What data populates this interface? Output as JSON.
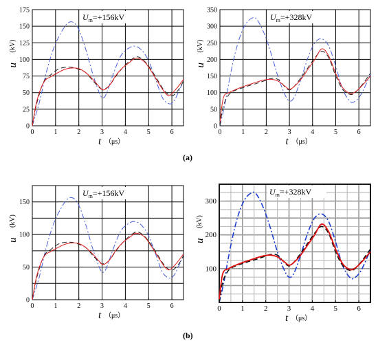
{
  "captions": [
    "(a)",
    "(b)"
  ],
  "chart_data": [
    {
      "type": "line",
      "annotation": "U_m=+156kV",
      "annotation_parts": {
        "symbol": "U",
        "sub": "m",
        "rest": "=+156kV"
      },
      "xlabel": "t",
      "xunit": "（μs）",
      "ylabel": "u",
      "yunit": "(kV)",
      "xlim": [
        0,
        6.5
      ],
      "ylim": [
        0,
        175
      ],
      "xticks": [
        0,
        1,
        2,
        3,
        4,
        5,
        6
      ],
      "yticks": [
        0,
        25,
        50,
        75,
        100,
        125,
        150,
        175
      ],
      "grid": true,
      "series": [
        {
          "style": "dash-dot",
          "color": "#4a5fd6",
          "x": [
            0,
            0.3,
            0.6,
            0.9,
            1.2,
            1.5,
            1.75,
            2.0,
            2.3,
            2.6,
            2.9,
            3.05,
            3.2,
            3.5,
            3.8,
            4.1,
            4.4,
            4.7,
            5.0,
            5.3,
            5.6,
            5.9,
            6.1,
            6.3,
            6.5
          ],
          "y": [
            0,
            35,
            80,
            115,
            138,
            154,
            156,
            145,
            115,
            78,
            48,
            42,
            50,
            80,
            105,
            116,
            120,
            114,
            98,
            70,
            42,
            33,
            38,
            52,
            68
          ]
        },
        {
          "style": "dash",
          "color": "#222222",
          "x": [
            0,
            0.2,
            0.5,
            0.8,
            1.1,
            1.4,
            1.7,
            2.0,
            2.3,
            2.6,
            2.9,
            3.05,
            3.3,
            3.6,
            3.9,
            4.2,
            4.5,
            4.8,
            5.1,
            5.4,
            5.7,
            6.0,
            6.3,
            6.5
          ],
          "y": [
            0,
            35,
            67,
            77,
            85,
            88,
            88,
            85,
            80,
            68,
            57,
            55,
            60,
            75,
            88,
            98,
            104,
            98,
            85,
            68,
            52,
            45,
            55,
            68
          ]
        },
        {
          "style": "solid",
          "color": "#e02020",
          "x": [
            0,
            0.2,
            0.5,
            0.8,
            1.1,
            1.4,
            1.7,
            2.0,
            2.3,
            2.6,
            2.9,
            3.05,
            3.3,
            3.6,
            3.9,
            4.2,
            4.45,
            4.8,
            5.1,
            5.4,
            5.7,
            5.9,
            6.2,
            6.5
          ],
          "y": [
            0,
            38,
            66,
            74,
            80,
            85,
            87,
            86,
            80,
            70,
            58,
            54,
            60,
            76,
            88,
            96,
            102,
            97,
            83,
            66,
            50,
            46,
            56,
            70
          ]
        }
      ]
    },
    {
      "type": "line",
      "annotation": "U_m=+328kV",
      "annotation_parts": {
        "symbol": "U",
        "sub": "m",
        "rest": "=+328kV"
      },
      "xlabel": "t",
      "xunit": "（μs）",
      "ylabel": "u",
      "yunit": "(kV)",
      "xlim": [
        0,
        6.5
      ],
      "ylim": [
        0,
        350
      ],
      "xticks": [
        0,
        1,
        2,
        3,
        4,
        5,
        6
      ],
      "yticks": [
        0,
        50,
        100,
        150,
        200,
        250,
        300,
        350
      ],
      "grid": true,
      "series": [
        {
          "style": "dash-dot",
          "color": "#4a5fd6",
          "x": [
            0,
            0.2,
            0.5,
            0.8,
            1.1,
            1.4,
            1.6,
            1.9,
            2.2,
            2.5,
            2.8,
            3.0,
            3.2,
            3.5,
            3.8,
            4.1,
            4.4,
            4.7,
            5.0,
            5.3,
            5.6,
            5.8,
            6.1,
            6.5
          ],
          "y": [
            0,
            60,
            170,
            255,
            305,
            325,
            320,
            280,
            220,
            150,
            95,
            75,
            85,
            140,
            205,
            250,
            262,
            240,
            180,
            110,
            75,
            72,
            95,
            155
          ]
        },
        {
          "style": "dash",
          "color": "#222222",
          "x": [
            0,
            0.15,
            0.4,
            0.7,
            1.0,
            1.3,
            1.6,
            1.9,
            2.2,
            2.5,
            2.8,
            3.0,
            3.2,
            3.5,
            3.8,
            4.1,
            4.4,
            4.7,
            5.0,
            5.3,
            5.6,
            5.8,
            6.1,
            6.5
          ],
          "y": [
            0,
            60,
            95,
            108,
            115,
            122,
            128,
            135,
            142,
            140,
            118,
            108,
            118,
            145,
            175,
            205,
            225,
            205,
            150,
            110,
            95,
            98,
            120,
            158
          ]
        },
        {
          "style": "solid",
          "color": "#e02020",
          "x": [
            0,
            0.15,
            0.4,
            0.7,
            1.0,
            1.3,
            1.6,
            1.9,
            2.2,
            2.5,
            2.8,
            3.0,
            3.2,
            3.5,
            3.8,
            4.1,
            4.4,
            4.7,
            5.0,
            5.3,
            5.6,
            5.8,
            6.1,
            6.5
          ],
          "y": [
            10,
            85,
            100,
            110,
            118,
            125,
            132,
            138,
            140,
            135,
            120,
            110,
            118,
            140,
            170,
            200,
            232,
            210,
            158,
            115,
            98,
            100,
            118,
            150
          ]
        }
      ]
    },
    {
      "type": "line",
      "annotation": "U_m=+156kV",
      "annotation_parts": {
        "symbol": "U",
        "sub": "m",
        "rest": "=+156kV"
      },
      "xlabel": "t",
      "xunit": "（μs）",
      "ylabel": "u",
      "yunit": "(kV)",
      "xlim": [
        0,
        6.5
      ],
      "ylim": [
        0,
        175
      ],
      "xticks": [
        0,
        1,
        2,
        3,
        4,
        5,
        6
      ],
      "yticks": [
        0,
        50,
        100,
        150
      ],
      "grid": true,
      "series": [
        {
          "style": "dash-dot",
          "color": "#4a5fd6",
          "x": [
            0,
            0.3,
            0.6,
            0.9,
            1.2,
            1.5,
            1.75,
            2.0,
            2.3,
            2.6,
            2.9,
            3.05,
            3.2,
            3.5,
            3.8,
            4.1,
            4.4,
            4.7,
            5.0,
            5.3,
            5.6,
            5.9,
            6.1,
            6.3,
            6.5
          ],
          "y": [
            0,
            35,
            80,
            115,
            138,
            154,
            156,
            145,
            115,
            78,
            48,
            42,
            50,
            80,
            105,
            116,
            120,
            114,
            98,
            70,
            42,
            33,
            38,
            52,
            68
          ]
        },
        {
          "style": "dash",
          "color": "#222222",
          "x": [
            0,
            0.2,
            0.5,
            0.8,
            1.1,
            1.4,
            1.7,
            2.0,
            2.3,
            2.6,
            2.9,
            3.05,
            3.3,
            3.6,
            3.9,
            4.2,
            4.5,
            4.8,
            5.1,
            5.4,
            5.7,
            6.0,
            6.3,
            6.5
          ],
          "y": [
            0,
            35,
            67,
            77,
            85,
            88,
            88,
            85,
            80,
            68,
            57,
            55,
            60,
            75,
            88,
            98,
            104,
            98,
            85,
            68,
            52,
            45,
            55,
            68
          ]
        },
        {
          "style": "solid",
          "color": "#e02020",
          "x": [
            0,
            0.2,
            0.5,
            0.8,
            1.1,
            1.4,
            1.7,
            2.0,
            2.3,
            2.6,
            2.9,
            3.05,
            3.3,
            3.6,
            3.9,
            4.2,
            4.45,
            4.8,
            5.1,
            5.4,
            5.7,
            5.9,
            6.2,
            6.5
          ],
          "y": [
            0,
            38,
            66,
            74,
            80,
            85,
            87,
            86,
            80,
            70,
            58,
            54,
            60,
            76,
            88,
            96,
            102,
            97,
            83,
            66,
            50,
            46,
            56,
            70
          ]
        }
      ]
    },
    {
      "type": "line",
      "annotation": "U_m=+328kV",
      "annotation_parts": {
        "symbol": "U",
        "sub": "m",
        "rest": "=+328kV"
      },
      "xlabel": "t",
      "xunit": "（μs）",
      "ylabel": "u",
      "yunit": "(kV)",
      "xlim": [
        0,
        6.5
      ],
      "ylim": [
        0,
        350
      ],
      "xticks": [
        0,
        1,
        2,
        3,
        4,
        5,
        6
      ],
      "yticks": [
        100,
        200,
        300
      ],
      "grid": true,
      "series": [
        {
          "style": "dash-dot",
          "color": "#1f3fd0",
          "x": [
            0,
            0.2,
            0.5,
            0.8,
            1.1,
            1.4,
            1.6,
            1.9,
            2.2,
            2.5,
            2.8,
            3.0,
            3.2,
            3.5,
            3.8,
            4.1,
            4.4,
            4.7,
            5.0,
            5.3,
            5.6,
            5.8,
            6.1,
            6.5
          ],
          "y": [
            0,
            60,
            170,
            255,
            305,
            325,
            320,
            280,
            220,
            150,
            95,
            75,
            85,
            140,
            205,
            250,
            262,
            240,
            180,
            110,
            75,
            72,
            95,
            155
          ]
        },
        {
          "style": "dash",
          "color": "#111111",
          "x": [
            0,
            0.15,
            0.4,
            0.7,
            1.0,
            1.3,
            1.6,
            1.9,
            2.2,
            2.5,
            2.8,
            3.0,
            3.2,
            3.5,
            3.8,
            4.1,
            4.4,
            4.7,
            5.0,
            5.3,
            5.6,
            5.8,
            6.1,
            6.5
          ],
          "y": [
            0,
            60,
            95,
            108,
            115,
            122,
            128,
            135,
            142,
            140,
            118,
            108,
            118,
            145,
            175,
            205,
            225,
            205,
            150,
            110,
            95,
            98,
            120,
            158
          ]
        },
        {
          "style": "solid",
          "color": "#e01010",
          "x": [
            0,
            0.15,
            0.4,
            0.7,
            1.0,
            1.3,
            1.6,
            1.9,
            2.2,
            2.5,
            2.8,
            3.0,
            3.2,
            3.5,
            3.8,
            4.1,
            4.4,
            4.7,
            5.0,
            5.3,
            5.6,
            5.8,
            6.1,
            6.5
          ],
          "y": [
            10,
            85,
            100,
            110,
            118,
            125,
            132,
            138,
            140,
            135,
            120,
            110,
            118,
            140,
            170,
            200,
            232,
            210,
            158,
            115,
            98,
            100,
            118,
            150
          ]
        }
      ]
    }
  ]
}
